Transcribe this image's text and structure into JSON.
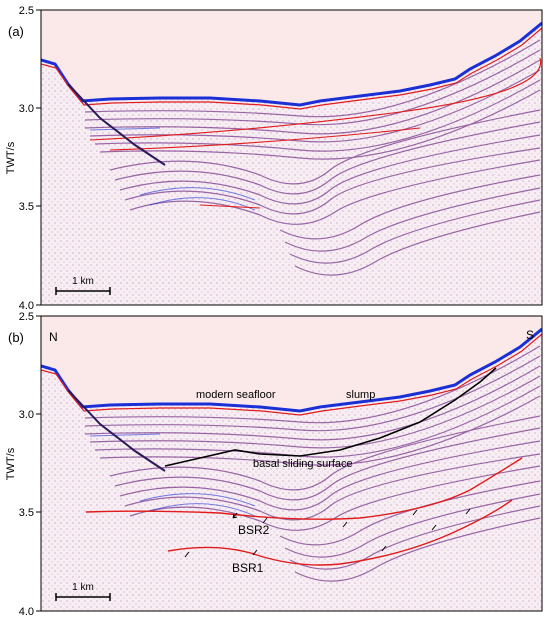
{
  "panels": [
    {
      "id": "a",
      "panel_label": "(a)",
      "y_axis_label": "TWT/s",
      "y_ticks": [
        "2.5",
        "3.0",
        "3.5",
        "4.0"
      ],
      "scale_bar_label": "1 km",
      "direction_labels": [],
      "annotations": []
    },
    {
      "id": "b",
      "panel_label": "(b)",
      "y_axis_label": "TWT/s",
      "y_ticks": [
        "2.5",
        "3.0",
        "3.5",
        "4.0"
      ],
      "scale_bar_label": "1 km",
      "direction_labels": [
        "N",
        "S"
      ],
      "annotations": [
        "modern seafloor",
        "slump",
        "basal sliding surface",
        "BSR2",
        "BSR1"
      ]
    }
  ],
  "colors": {
    "water_column": "#fbe9e9",
    "seafloor_blue": "#1a2fd6",
    "reflector_purple": "#7a3a8c",
    "horizon_red": "#e11b1b",
    "sliding_surface_black": "#000000",
    "background_noise": "#f2e6ee"
  }
}
